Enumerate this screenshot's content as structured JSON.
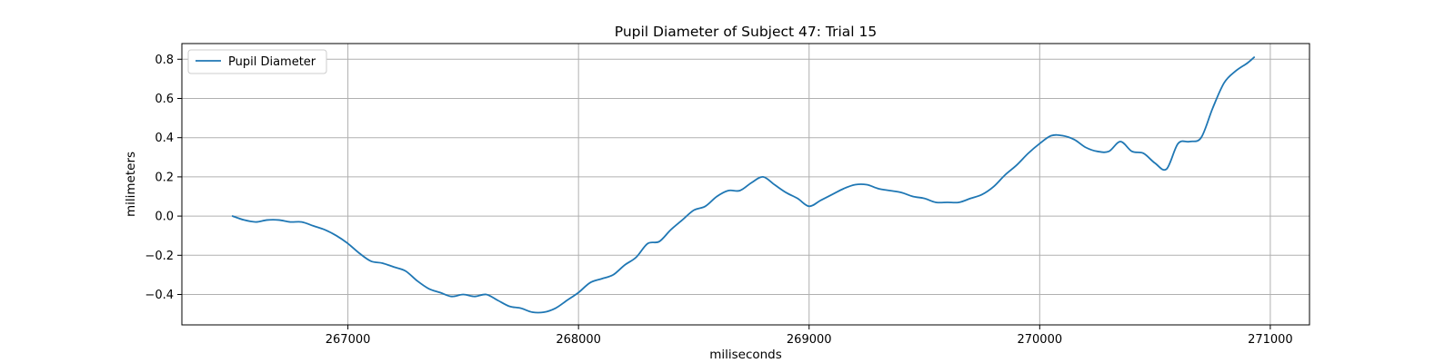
{
  "chart_data": {
    "type": "line",
    "title": "Pupil Diameter of Subject 47: Trial 15",
    "xlabel": "miliseconds",
    "ylabel": "milimeters",
    "xlim": [
      266280,
      271170
    ],
    "ylim": [
      -0.555,
      0.88
    ],
    "xticks": [
      267000,
      268000,
      269000,
      270000,
      271000
    ],
    "yticks": [
      -0.4,
      -0.2,
      0.0,
      0.2,
      0.4,
      0.6,
      0.8
    ],
    "xtick_labels": [
      "267000",
      "268000",
      "269000",
      "270000",
      "271000"
    ],
    "ytick_labels": [
      "−0.4",
      "−0.2",
      "0.0",
      "0.2",
      "0.4",
      "0.6",
      "0.8"
    ],
    "grid": true,
    "legend": {
      "position": "top-left"
    },
    "series": [
      {
        "name": "Pupil Diameter",
        "color": "#1f77b4",
        "x": [
          266500,
          266550,
          266600,
          266650,
          266700,
          266750,
          266800,
          266850,
          266900,
          266950,
          267000,
          267050,
          267100,
          267150,
          267200,
          267250,
          267300,
          267350,
          267400,
          267450,
          267500,
          267550,
          267600,
          267650,
          267700,
          267750,
          267800,
          267850,
          267900,
          267950,
          268000,
          268050,
          268100,
          268150,
          268200,
          268250,
          268300,
          268350,
          268400,
          268450,
          268500,
          268550,
          268600,
          268650,
          268700,
          268750,
          268800,
          268850,
          268900,
          268950,
          269000,
          269050,
          269100,
          269150,
          269200,
          269250,
          269300,
          269350,
          269400,
          269450,
          269500,
          269550,
          269600,
          269650,
          269700,
          269750,
          269800,
          269850,
          269900,
          269950,
          270000,
          270050,
          270100,
          270150,
          270200,
          270250,
          270300,
          270350,
          270400,
          270450,
          270500,
          270550,
          270600,
          270650,
          270700,
          270750,
          270800,
          270850,
          270900,
          270930
        ],
        "y": [
          0.0,
          -0.02,
          -0.03,
          -0.02,
          -0.02,
          -0.03,
          -0.03,
          -0.05,
          -0.07,
          -0.1,
          -0.14,
          -0.19,
          -0.23,
          -0.24,
          -0.26,
          -0.28,
          -0.33,
          -0.37,
          -0.39,
          -0.41,
          -0.4,
          -0.41,
          -0.4,
          -0.43,
          -0.46,
          -0.47,
          -0.49,
          -0.49,
          -0.47,
          -0.43,
          -0.39,
          -0.34,
          -0.32,
          -0.3,
          -0.25,
          -0.21,
          -0.14,
          -0.13,
          -0.07,
          -0.02,
          0.03,
          0.05,
          0.1,
          0.13,
          0.13,
          0.17,
          0.2,
          0.16,
          0.12,
          0.09,
          0.05,
          0.08,
          0.11,
          0.14,
          0.16,
          0.16,
          0.14,
          0.13,
          0.12,
          0.1,
          0.09,
          0.07,
          0.07,
          0.07,
          0.09,
          0.11,
          0.15,
          0.21,
          0.26,
          0.32,
          0.37,
          0.41,
          0.41,
          0.39,
          0.35,
          0.33,
          0.33,
          0.38,
          0.33,
          0.32,
          0.27,
          0.24,
          0.37,
          0.38,
          0.4,
          0.55,
          0.68,
          0.74,
          0.78,
          0.81
        ]
      }
    ]
  }
}
